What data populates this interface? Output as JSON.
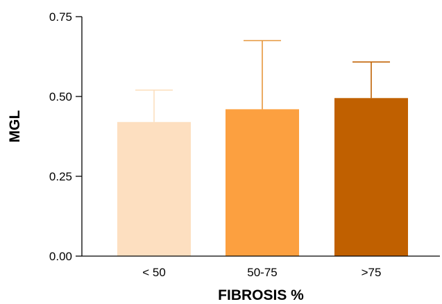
{
  "chart_data": {
    "type": "bar",
    "title": "",
    "xlabel": "FIBROSIS %",
    "ylabel": "MGL",
    "categories": [
      "< 50",
      "50-75",
      ">75"
    ],
    "values": [
      0.42,
      0.46,
      0.495
    ],
    "error_upper": [
      0.52,
      0.675,
      0.608
    ],
    "bar_colors": [
      "#FDDFC0",
      "#FCA040",
      "#C06000"
    ],
    "error_colors": [
      "#FCE0C0",
      "#E6963A",
      "#C06000"
    ],
    "ylim": [
      0,
      0.75
    ],
    "yticks": [
      "0.00",
      "0.25",
      "0.50",
      "0.75"
    ],
    "grid": false,
    "legend": "none"
  }
}
